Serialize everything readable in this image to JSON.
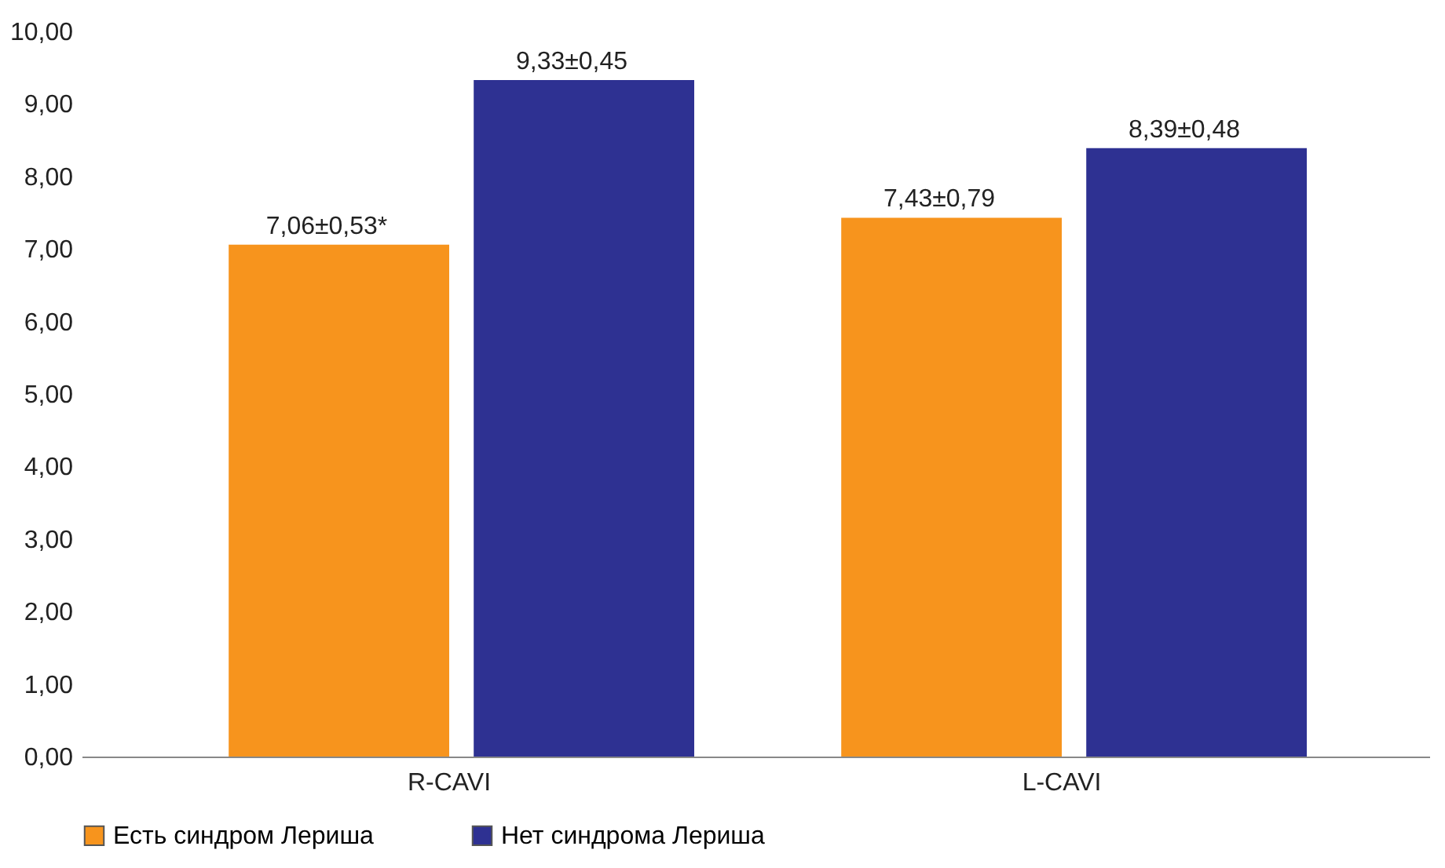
{
  "chart_data": {
    "type": "bar",
    "categories": [
      "R-CAVI",
      "L-CAVI"
    ],
    "series": [
      {
        "name": "Есть синдром Лериша",
        "color": "#f7941d",
        "values": [
          7.06,
          7.43
        ],
        "value_labels": [
          "7,06±0,53*",
          "7,43±0,79"
        ]
      },
      {
        "name": "Нет синдрома Лериша",
        "color": "#2e3192",
        "values": [
          9.33,
          8.39
        ],
        "value_labels": [
          "9,33±0,45",
          "8,39±0,48"
        ]
      }
    ],
    "ylim": [
      0,
      10
    ],
    "yticks": [
      {
        "value": 0,
        "label": "0,00"
      },
      {
        "value": 1,
        "label": "1,00"
      },
      {
        "value": 2,
        "label": "2,00"
      },
      {
        "value": 3,
        "label": "3,00"
      },
      {
        "value": 4,
        "label": "4,00"
      },
      {
        "value": 5,
        "label": "5,00"
      },
      {
        "value": 6,
        "label": "6,00"
      },
      {
        "value": 7,
        "label": "7,00"
      },
      {
        "value": 8,
        "label": "8,00"
      },
      {
        "value": 9,
        "label": "9,00"
      },
      {
        "value": 10,
        "label": "10,00"
      }
    ],
    "grid": false,
    "legend": "bottom"
  }
}
